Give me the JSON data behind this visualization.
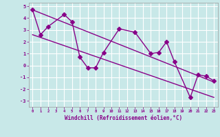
{
  "y_line1_x": [
    0,
    1,
    2,
    4,
    5,
    6,
    7,
    8,
    9,
    11,
    13,
    15,
    16,
    17,
    18,
    20,
    21,
    22,
    23
  ],
  "y_line1_y": [
    4.7,
    2.6,
    3.3,
    4.3,
    3.7,
    0.7,
    -0.2,
    -0.2,
    1.1,
    3.1,
    2.8,
    1.0,
    1.1,
    2.0,
    0.3,
    -2.7,
    -0.8,
    -0.9,
    -1.3
  ],
  "reg1_x0": 0,
  "reg1_y0": 4.7,
  "reg1_x1": 23,
  "reg1_y1": -1.4,
  "reg2_x0": 0,
  "reg2_y0": 2.6,
  "reg2_x1": 23,
  "reg2_y1": -2.7,
  "xlim": [
    -0.5,
    23.5
  ],
  "ylim": [
    -3.5,
    5.3
  ],
  "yticks": [
    -3,
    -2,
    -1,
    0,
    1,
    2,
    3,
    4,
    5
  ],
  "xticks": [
    0,
    1,
    2,
    3,
    4,
    5,
    6,
    7,
    8,
    9,
    10,
    11,
    12,
    13,
    14,
    15,
    16,
    17,
    18,
    19,
    20,
    21,
    22,
    23
  ],
  "xlabel": "Windchill (Refroidissement éolien,°C)",
  "line_color": "#880088",
  "bg_color": "#c8e8e8",
  "grid_color": "#ffffff",
  "spine_color": "#999999",
  "tick_color": "#880088",
  "label_color": "#880088"
}
